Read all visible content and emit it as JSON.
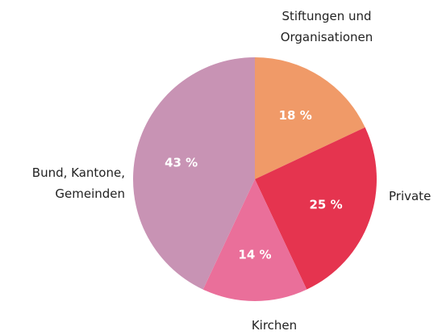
{
  "chart_data": {
    "type": "pie",
    "categories": [
      "Stiftungen und\nOrganisationen",
      "Private",
      "Kirchen",
      "Bund, Kantone,\nGemeinden"
    ],
    "values": [
      18,
      25,
      14,
      43
    ],
    "value_labels": [
      "18 %",
      "25 %",
      "14 %",
      "43 %"
    ],
    "colors": [
      "#f09a68",
      "#e5344f",
      "#ea6f9a",
      "#c893b4"
    ]
  }
}
